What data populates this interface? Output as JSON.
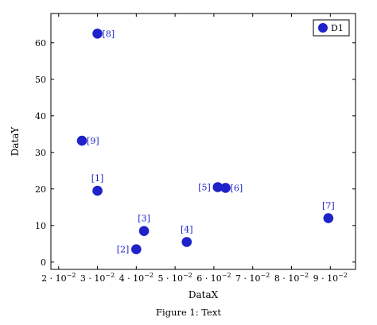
{
  "chart_data": {
    "type": "scatter",
    "xlabel": "DataX",
    "ylabel": "DataY",
    "xlim": [
      0.018,
      0.0965
    ],
    "ylim": [
      -2,
      68
    ],
    "x_ticks": [
      {
        "value": 0.02,
        "base": "2 · 10",
        "exp": "−2"
      },
      {
        "value": 0.03,
        "base": "3 · 10",
        "exp": "−2"
      },
      {
        "value": 0.04,
        "base": "4 · 10",
        "exp": "−2"
      },
      {
        "value": 0.05,
        "base": "5 · 10",
        "exp": "−2"
      },
      {
        "value": 0.06,
        "base": "6 · 10",
        "exp": "−2"
      },
      {
        "value": 0.07,
        "base": "7 · 10",
        "exp": "−2"
      },
      {
        "value": 0.08,
        "base": "8 · 10",
        "exp": "−2"
      },
      {
        "value": 0.09,
        "base": "9 · 10",
        "exp": "−2"
      }
    ],
    "y_ticks": [
      0,
      10,
      20,
      30,
      40,
      50,
      60
    ],
    "grid": false,
    "legend": {
      "placement": "top-right",
      "entries": [
        "D1"
      ]
    },
    "series": [
      {
        "name": "D1",
        "color": "#1f22c8",
        "points": [
          {
            "x": 0.03,
            "y": 19.5,
            "label": "[1]",
            "label_pos": "above"
          },
          {
            "x": 0.04,
            "y": 3.5,
            "label": "[2]",
            "label_pos": "left"
          },
          {
            "x": 0.042,
            "y": 8.5,
            "label": "[3]",
            "label_pos": "above"
          },
          {
            "x": 0.053,
            "y": 5.5,
            "label": "[4]",
            "label_pos": "above"
          },
          {
            "x": 0.061,
            "y": 20.5,
            "label": "[5]",
            "label_pos": "left"
          },
          {
            "x": 0.063,
            "y": 20.3,
            "label": "[6]",
            "label_pos": "right"
          },
          {
            "x": 0.0895,
            "y": 12.0,
            "label": "[7]",
            "label_pos": "above"
          },
          {
            "x": 0.03,
            "y": 62.5,
            "label": "[8]",
            "label_pos": "right"
          },
          {
            "x": 0.026,
            "y": 33.2,
            "label": "[9]",
            "label_pos": "right"
          }
        ]
      }
    ]
  },
  "caption": "Figure 1: Text"
}
